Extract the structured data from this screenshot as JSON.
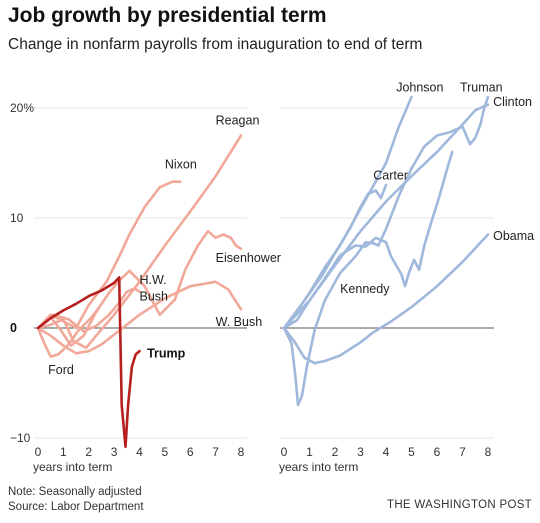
{
  "title": "Job growth by presidential term",
  "subtitle": "Change in nonfarm payrolls from inauguration to end of term",
  "note": [
    "Note: Seasonally adjusted",
    "Source: Labor Department"
  ],
  "credit": "THE WASHINGTON POST",
  "colors": {
    "republican": "#f2a898",
    "trump": "#b5201e",
    "democrat": "#9fb8dc",
    "grid": "#e6e6e6",
    "zero": "#555555"
  },
  "chart_data": [
    {
      "type": "line",
      "xlabel": "years into term",
      "xlim": [
        0,
        8
      ],
      "ylim": [
        -10,
        21
      ],
      "x_ticks": [
        "0",
        "1",
        "2",
        "3",
        "4",
        "5",
        "6",
        "7",
        "8"
      ],
      "y_ticks": [
        {
          "value": 20,
          "label": "20%"
        },
        {
          "value": 10,
          "label": "10"
        },
        {
          "value": 0,
          "label": "0"
        },
        {
          "value": -10,
          "label": "−10"
        }
      ],
      "series": [
        {
          "name": "Reagan",
          "highlight": false,
          "points": [
            [
              0,
              0
            ],
            [
              0.5,
              0.3
            ],
            [
              1,
              0.8
            ],
            [
              1.4,
              -1.2
            ],
            [
              1.9,
              -1.8
            ],
            [
              2.4,
              -0.4
            ],
            [
              3,
              1.2
            ],
            [
              4,
              4.2
            ],
            [
              5,
              7.5
            ],
            [
              6,
              10.6
            ],
            [
              7,
              13.8
            ],
            [
              8,
              17.5
            ]
          ]
        },
        {
          "name": "Nixon",
          "highlight": false,
          "points": [
            [
              0,
              0
            ],
            [
              0.5,
              1.2
            ],
            [
              1,
              0.6
            ],
            [
              1.5,
              0
            ],
            [
              2,
              2.1
            ],
            [
              2.7,
              4.2
            ],
            [
              3.2,
              6.5
            ],
            [
              3.6,
              8.5
            ],
            [
              4.2,
              11
            ],
            [
              4.8,
              12.8
            ],
            [
              5.3,
              13.3
            ],
            [
              5.6,
              13.3
            ]
          ]
        },
        {
          "name": "Eisenhower",
          "highlight": false,
          "points": [
            [
              0,
              0
            ],
            [
              0.5,
              1
            ],
            [
              0.9,
              -0.2
            ],
            [
              1.3,
              -1.6
            ],
            [
              1.8,
              -0.7
            ],
            [
              2.3,
              1.5
            ],
            [
              2.8,
              3.2
            ],
            [
              3.2,
              4.3
            ],
            [
              3.6,
              5.2
            ],
            [
              4.2,
              3.8
            ],
            [
              4.8,
              1.2
            ],
            [
              5.4,
              2.6
            ],
            [
              5.8,
              5.3
            ],
            [
              6.3,
              7.5
            ],
            [
              6.7,
              8.8
            ],
            [
              7,
              8.2
            ],
            [
              7.3,
              8.5
            ],
            [
              7.6,
              8.2
            ],
            [
              7.8,
              7.5
            ],
            [
              8,
              7.2
            ]
          ]
        },
        {
          "name": "H.W. Bush",
          "highlight": false,
          "points": [
            [
              0,
              0
            ],
            [
              0.6,
              1.2
            ],
            [
              1.2,
              0.8
            ],
            [
              1.8,
              -0.3
            ],
            [
              2.3,
              0.2
            ],
            [
              2.8,
              1.2
            ],
            [
              3.2,
              2.3
            ],
            [
              3.5,
              3.3
            ],
            [
              3.8,
              3.6
            ],
            [
              4,
              3.3
            ]
          ]
        },
        {
          "name": "W. Bush",
          "highlight": false,
          "points": [
            [
              0,
              0
            ],
            [
              0.5,
              -0.7
            ],
            [
              1,
              -1.6
            ],
            [
              1.5,
              -2.3
            ],
            [
              2,
              -2.1
            ],
            [
              2.5,
              -1.5
            ],
            [
              3,
              -0.6
            ],
            [
              4,
              1.2
            ],
            [
              5,
              2.7
            ],
            [
              6,
              3.8
            ],
            [
              7,
              4.2
            ],
            [
              7.5,
              3.5
            ],
            [
              8,
              1.7
            ]
          ]
        },
        {
          "name": "Ford",
          "highlight": false,
          "points": [
            [
              0,
              0
            ],
            [
              0.25,
              -1.4
            ],
            [
              0.5,
              -2.6
            ],
            [
              0.8,
              -2.4
            ],
            [
              1.2,
              -1.5
            ],
            [
              1.6,
              -0.2
            ],
            [
              2,
              0.7
            ],
            [
              2.4,
              1.8
            ]
          ]
        },
        {
          "name": "Trump",
          "highlight": true,
          "points": [
            [
              0,
              0
            ],
            [
              0.5,
              0.9
            ],
            [
              1,
              1.6
            ],
            [
              1.5,
              2.2
            ],
            [
              2,
              2.9
            ],
            [
              2.5,
              3.4
            ],
            [
              3,
              4.1
            ],
            [
              3.2,
              4.6
            ],
            [
              3.3,
              -7
            ],
            [
              3.45,
              -10.8
            ],
            [
              3.55,
              -7
            ],
            [
              3.7,
              -3.5
            ],
            [
              3.85,
              -2.4
            ],
            [
              4,
              -2.1
            ]
          ]
        }
      ],
      "labels": [
        {
          "text": "Reagan",
          "x": 7,
          "y": 18.5
        },
        {
          "text": "Nixon",
          "x": 5,
          "y": 14.5
        },
        {
          "text": "Eisenhower",
          "x": 7,
          "y": 6
        },
        {
          "text": "H.W.",
          "x": 4,
          "y": 4
        },
        {
          "text": "Bush",
          "x": 4,
          "y": 2.5
        },
        {
          "text": "W. Bush",
          "x": 7,
          "y": 0.2
        },
        {
          "text": "Ford",
          "x": 0.4,
          "y": -4.2
        },
        {
          "text": "Trump",
          "x": 4.3,
          "y": -2.7
        }
      ]
    },
    {
      "type": "line",
      "xlabel": "years into term",
      "xlim": [
        0,
        8
      ],
      "ylim": [
        -10,
        21
      ],
      "x_ticks": [
        "0",
        "1",
        "2",
        "3",
        "4",
        "5",
        "6",
        "7",
        "8"
      ],
      "series": [
        {
          "name": "Johnson",
          "highlight": false,
          "points": [
            [
              0,
              0
            ],
            [
              0.5,
              1.5
            ],
            [
              1,
              3.2
            ],
            [
              1.6,
              5.5
            ],
            [
              2.2,
              7.5
            ],
            [
              2.8,
              10
            ],
            [
              3.4,
              12.5
            ],
            [
              4,
              15
            ],
            [
              4.5,
              18.3
            ],
            [
              5,
              21
            ]
          ]
        },
        {
          "name": "Truman",
          "highlight": false,
          "points": [
            [
              0,
              0
            ],
            [
              0.3,
              -1.4
            ],
            [
              0.45,
              -4.5
            ],
            [
              0.55,
              -7
            ],
            [
              0.7,
              -6.2
            ],
            [
              0.9,
              -3.5
            ],
            [
              1.2,
              -0.2
            ],
            [
              1.6,
              2.5
            ],
            [
              2.2,
              5
            ],
            [
              2.8,
              6.5
            ],
            [
              3.2,
              7.8
            ],
            [
              3.5,
              7.7
            ],
            [
              3.7,
              7.5
            ],
            [
              4,
              9
            ],
            [
              4.5,
              12
            ],
            [
              5,
              14.5
            ],
            [
              5.5,
              16.5
            ],
            [
              6,
              17.5
            ],
            [
              6.5,
              17.8
            ],
            [
              7,
              18.3
            ],
            [
              7.3,
              16.7
            ],
            [
              7.5,
              17.3
            ],
            [
              7.7,
              18.5
            ],
            [
              7.85,
              20
            ],
            [
              8,
              21
            ]
          ]
        },
        {
          "name": "Clinton",
          "highlight": false,
          "points": [
            [
              0,
              0
            ],
            [
              1,
              2.5
            ],
            [
              2,
              5.7
            ],
            [
              3,
              8.8
            ],
            [
              4,
              11.5
            ],
            [
              5,
              13.8
            ],
            [
              6,
              16
            ],
            [
              7,
              18.5
            ],
            [
              7.5,
              19.8
            ],
            [
              8,
              20.3
            ]
          ]
        },
        {
          "name": "Carter",
          "highlight": false,
          "points": [
            [
              0,
              0
            ],
            [
              0.8,
              2.5
            ],
            [
              1.5,
              4.8
            ],
            [
              2,
              6.8
            ],
            [
              2.6,
              9.1
            ],
            [
              3,
              11
            ],
            [
              3.3,
              12.2
            ],
            [
              3.6,
              12.5
            ],
            [
              3.8,
              11.8
            ],
            [
              4,
              13
            ]
          ]
        },
        {
          "name": "Kennedy",
          "highlight": false,
          "points": [
            [
              0,
              0
            ],
            [
              0.5,
              0.7
            ],
            [
              1,
              2.5
            ],
            [
              1.6,
              4.5
            ],
            [
              2.2,
              6.6
            ],
            [
              2.8,
              7.5
            ],
            [
              3.2,
              7.4
            ],
            [
              3.6,
              8.2
            ],
            [
              4,
              7.8
            ],
            [
              4.2,
              6.5
            ],
            [
              4.4,
              5.7
            ],
            [
              4.6,
              4.9
            ],
            [
              4.75,
              3.8
            ],
            [
              4.9,
              5
            ],
            [
              5.1,
              6.2
            ],
            [
              5.3,
              5.3
            ],
            [
              5.5,
              7.5
            ],
            [
              5.8,
              9.8
            ],
            [
              6.1,
              12
            ],
            [
              6.4,
              14.5
            ],
            [
              6.6,
              16
            ]
          ]
        },
        {
          "name": "Obama",
          "highlight": false,
          "points": [
            [
              0,
              0
            ],
            [
              0.4,
              -1.2
            ],
            [
              0.8,
              -2.7
            ],
            [
              1.2,
              -3.2
            ],
            [
              1.6,
              -3
            ],
            [
              2.2,
              -2.5
            ],
            [
              3,
              -1.3
            ],
            [
              3.5,
              -0.4
            ],
            [
              4.2,
              0.6
            ],
            [
              5,
              1.9
            ],
            [
              6,
              3.8
            ],
            [
              7,
              6
            ],
            [
              8,
              8.5
            ]
          ]
        }
      ],
      "labels": [
        {
          "text": "Johnson",
          "x": 4.4,
          "y": 21.5
        },
        {
          "text": "Truman",
          "x": 6.9,
          "y": 21.5
        },
        {
          "text": "Clinton",
          "x": 8.2,
          "y": 20.2
        },
        {
          "text": "Carter",
          "x": 3.5,
          "y": 13.5
        },
        {
          "text": "Kennedy",
          "x": 2.2,
          "y": 3.2
        },
        {
          "text": "Obama",
          "x": 8.2,
          "y": 8
        }
      ]
    }
  ]
}
